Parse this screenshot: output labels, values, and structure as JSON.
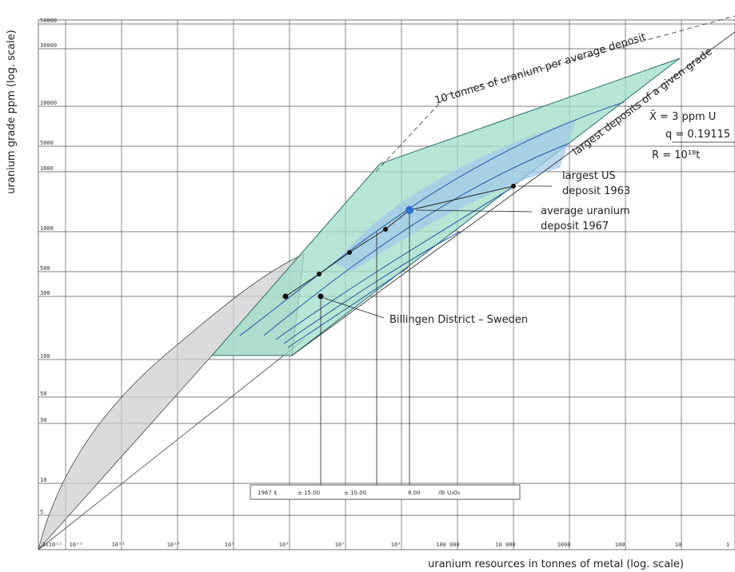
{
  "axes": {
    "y_label": "uranium grade ppm (log. scale)",
    "x_label": "uranium resources in tonnes of metal (log. scale)",
    "y_ticks": [
      "50000",
      "30000",
      "10000",
      "5000",
      "3000",
      "1000",
      "500",
      "300",
      "100",
      "50",
      "30",
      "10",
      "5"
    ],
    "x_ticks": [
      "3x10¹²",
      "10¹²",
      "10¹¹",
      "10¹⁰",
      "10⁹",
      "10⁸",
      "10⁷",
      "10⁶",
      "100 000",
      "10 000",
      "1000",
      "100",
      "10",
      "1"
    ]
  },
  "annotations": {
    "ten_tonnes": "10 tonnes of uranium per average deposit",
    "largest_deposits": "largest deposits of a given grade",
    "mean": "X̄ = 3 ppm U",
    "q": "q = 0.19115",
    "r": "R = 10¹⁸t",
    "largest_us_1": "largest US",
    "largest_us_2": "deposit 1963",
    "average_1": "average uranium",
    "average_2": "deposit 1967",
    "billingen": "Billingen District – Sweden"
  },
  "price_box": [
    "1967 $",
    "± 15.00",
    "± 10.00",
    "8.00",
    "/lb U₃O₈"
  ]
}
